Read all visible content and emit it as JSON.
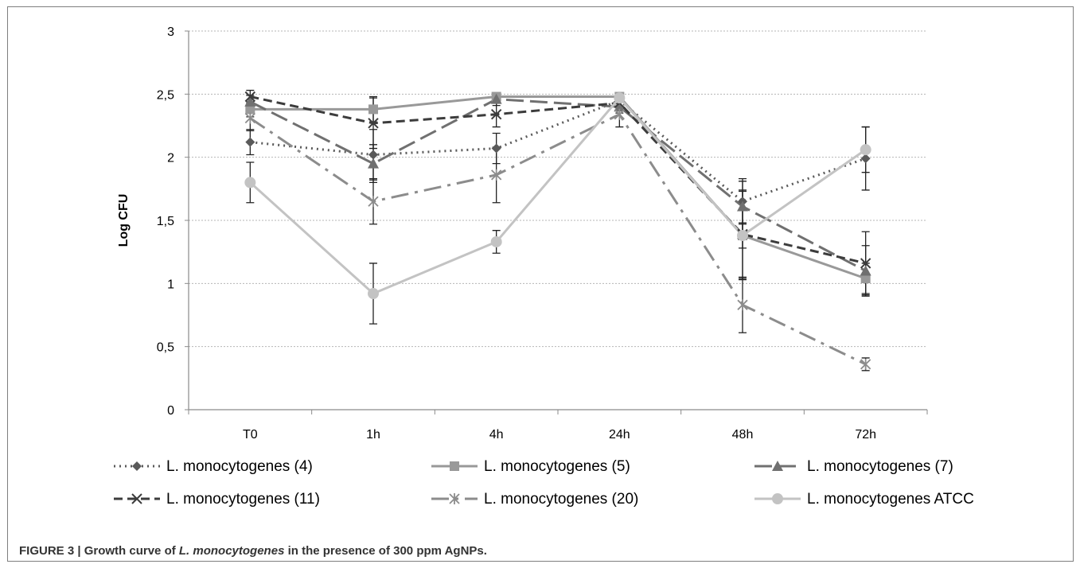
{
  "caption": {
    "prefix": "FIGURE 3 | Growth curve of ",
    "species": "L. monocytogenes",
    "suffix": " in the presence of 300 ppm AgNPs."
  },
  "chart_data": {
    "type": "line",
    "title": "",
    "xlabel": "",
    "ylabel": "Log CFU",
    "categories": [
      "T0",
      "1h",
      "4h",
      "24h",
      "48h",
      "72h"
    ],
    "ylim": [
      0,
      3
    ],
    "yticks": [
      0,
      0.5,
      1,
      1.5,
      2,
      2.5,
      3
    ],
    "ytick_labels": [
      "0",
      "0,5",
      "1",
      "1,5",
      "2",
      "2,5",
      "3"
    ],
    "grid": "horizontal dotted",
    "legend_position": "bottom",
    "series": [
      {
        "name": "L. monocytogenes (4)",
        "values": [
          2.12,
          2.02,
          2.07,
          2.45,
          1.65,
          1.99
        ],
        "error": [
          0.1,
          0.2,
          0.12,
          0.05,
          0.18,
          0.25
        ],
        "color": "#5a5a5a",
        "dash": "dot",
        "marker": "diamond"
      },
      {
        "name": "L. monocytogenes (5)",
        "values": [
          2.38,
          2.38,
          2.48,
          2.48,
          1.38,
          1.04
        ],
        "error": [
          0.06,
          0.1,
          0.02,
          0.02,
          0.1,
          0.12
        ],
        "color": "#999999",
        "dash": "solid",
        "marker": "square"
      },
      {
        "name": "L. monocytogenes (7)",
        "values": [
          2.44,
          1.95,
          2.46,
          2.4,
          1.61,
          1.1
        ],
        "error": [
          0.05,
          0.15,
          0.05,
          0.05,
          0.2,
          0.2
        ],
        "color": "#707070",
        "dash": "longdash",
        "marker": "triangle"
      },
      {
        "name": "L. monocytogenes (11)",
        "values": [
          2.48,
          2.27,
          2.34,
          2.43,
          1.39,
          1.16
        ],
        "error": [
          0.05,
          0.2,
          0.1,
          0.05,
          0.35,
          0.25
        ],
        "color": "#3c3c3c",
        "dash": "dash",
        "marker": "x"
      },
      {
        "name": "L. monocytogenes (20)",
        "values": [
          2.31,
          1.65,
          1.86,
          2.34,
          0.83,
          0.36
        ],
        "error": [
          0.1,
          0.18,
          0.22,
          0.1,
          0.22,
          0.05
        ],
        "color": "#8c8c8c",
        "dash": "dashdot",
        "marker": "star"
      },
      {
        "name": "L. monocytogenes ATCC",
        "values": [
          1.8,
          0.92,
          1.33,
          2.47,
          1.38,
          2.06
        ],
        "error": [
          0.16,
          0.24,
          0.09,
          0.02,
          0.35,
          0.18
        ],
        "color": "#c3c3c3",
        "dash": "solid",
        "marker": "circle"
      }
    ]
  }
}
